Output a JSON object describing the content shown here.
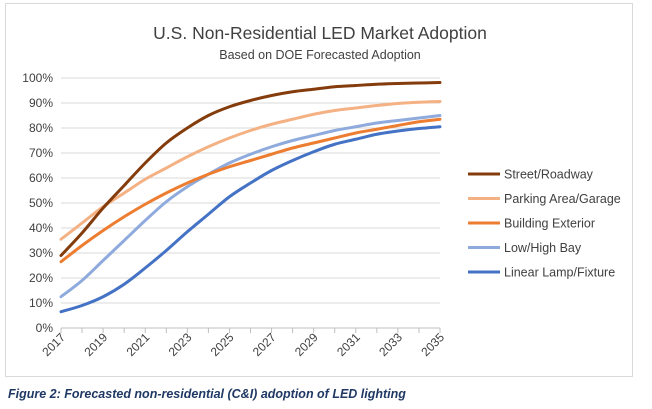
{
  "caption": "Figure 2: Forecasted non-residential (C&I) adoption of LED lighting",
  "chart_data": {
    "type": "line",
    "title": "U.S. Non-Residential LED Market Adoption",
    "subtitle": "Based on DOE Forecasted Adoption",
    "x": [
      2017,
      2018,
      2019,
      2020,
      2021,
      2022,
      2023,
      2024,
      2025,
      2026,
      2027,
      2028,
      2029,
      2030,
      2031,
      2032,
      2033,
      2034,
      2035
    ],
    "x_tick_labels": [
      "2017",
      "2019",
      "2021",
      "2023",
      "2025",
      "2027",
      "2029",
      "2031",
      "2033",
      "2035"
    ],
    "y_tick_labels": [
      "0%",
      "10%",
      "20%",
      "30%",
      "40%",
      "50%",
      "60%",
      "70%",
      "80%",
      "90%",
      "100%"
    ],
    "ylim": [
      0,
      100
    ],
    "y_unit": "%",
    "grid": "horizontal",
    "legend_position": "right",
    "series": [
      {
        "name": "Street/Roadway",
        "color": "#843c0c",
        "values": [
          29,
          38,
          48,
          57,
          66,
          74,
          80,
          85,
          88.5,
          91,
          93,
          94.5,
          95.5,
          96.5,
          97,
          97.5,
          97.8,
          98,
          98.2
        ]
      },
      {
        "name": "Parking Area/Garage",
        "color": "#f4b183",
        "values": [
          35.5,
          42,
          48.5,
          54,
          59.5,
          64,
          68.5,
          72.5,
          76,
          79,
          81.5,
          83.5,
          85.5,
          87,
          88,
          89,
          89.8,
          90.3,
          90.6
        ]
      },
      {
        "name": "Building Exterior",
        "color": "#ed7d31",
        "values": [
          26.5,
          33,
          39,
          44.5,
          49.5,
          54,
          58,
          61.5,
          64.5,
          67,
          69.5,
          72,
          74,
          76,
          78,
          79.5,
          81,
          82.5,
          83.5
        ]
      },
      {
        "name": "Low/High Bay",
        "color": "#8faadc",
        "values": [
          12.5,
          19,
          27,
          35,
          43,
          50.5,
          56.5,
          61.5,
          66,
          69.5,
          72.5,
          75,
          77,
          79,
          80.5,
          82,
          83,
          84,
          85
        ]
      },
      {
        "name": "Linear Lamp/Fixture",
        "color": "#4472c4",
        "values": [
          6.5,
          9,
          12.5,
          17.5,
          24,
          31,
          38.5,
          45.5,
          52.5,
          58,
          63,
          67,
          70.5,
          73.5,
          75.5,
          77.5,
          78.8,
          79.8,
          80.5
        ]
      }
    ]
  }
}
